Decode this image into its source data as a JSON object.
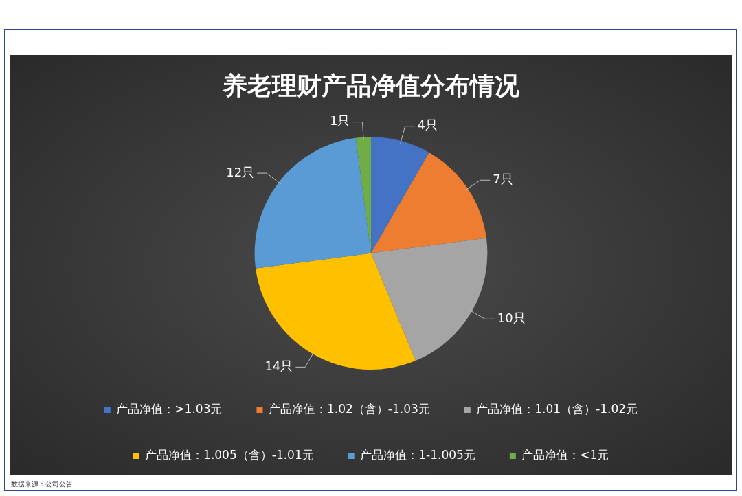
{
  "chart_data": {
    "type": "pie",
    "title": "养老理财产品净值分布情况",
    "categories": [
      "产品净值：>1.03元",
      "产品净值：1.02（含）-1.03元",
      "产品净值：1.01（含）-1.02元",
      "产品净值：1.005（含）-1.01元",
      "产品净值：1-1.005元",
      "产品净值：<1元"
    ],
    "values": [
      4,
      7,
      10,
      14,
      12,
      1
    ],
    "colors": [
      "#4472c4",
      "#ed7d31",
      "#a5a5a5",
      "#ffc000",
      "#5b9bd5",
      "#70ad47"
    ],
    "value_labels": [
      "4只",
      "7只",
      "10只",
      "14只",
      "12只",
      "1只"
    ],
    "legend": "bottom",
    "annotations": [
      "数据来源：公司公告"
    ]
  }
}
